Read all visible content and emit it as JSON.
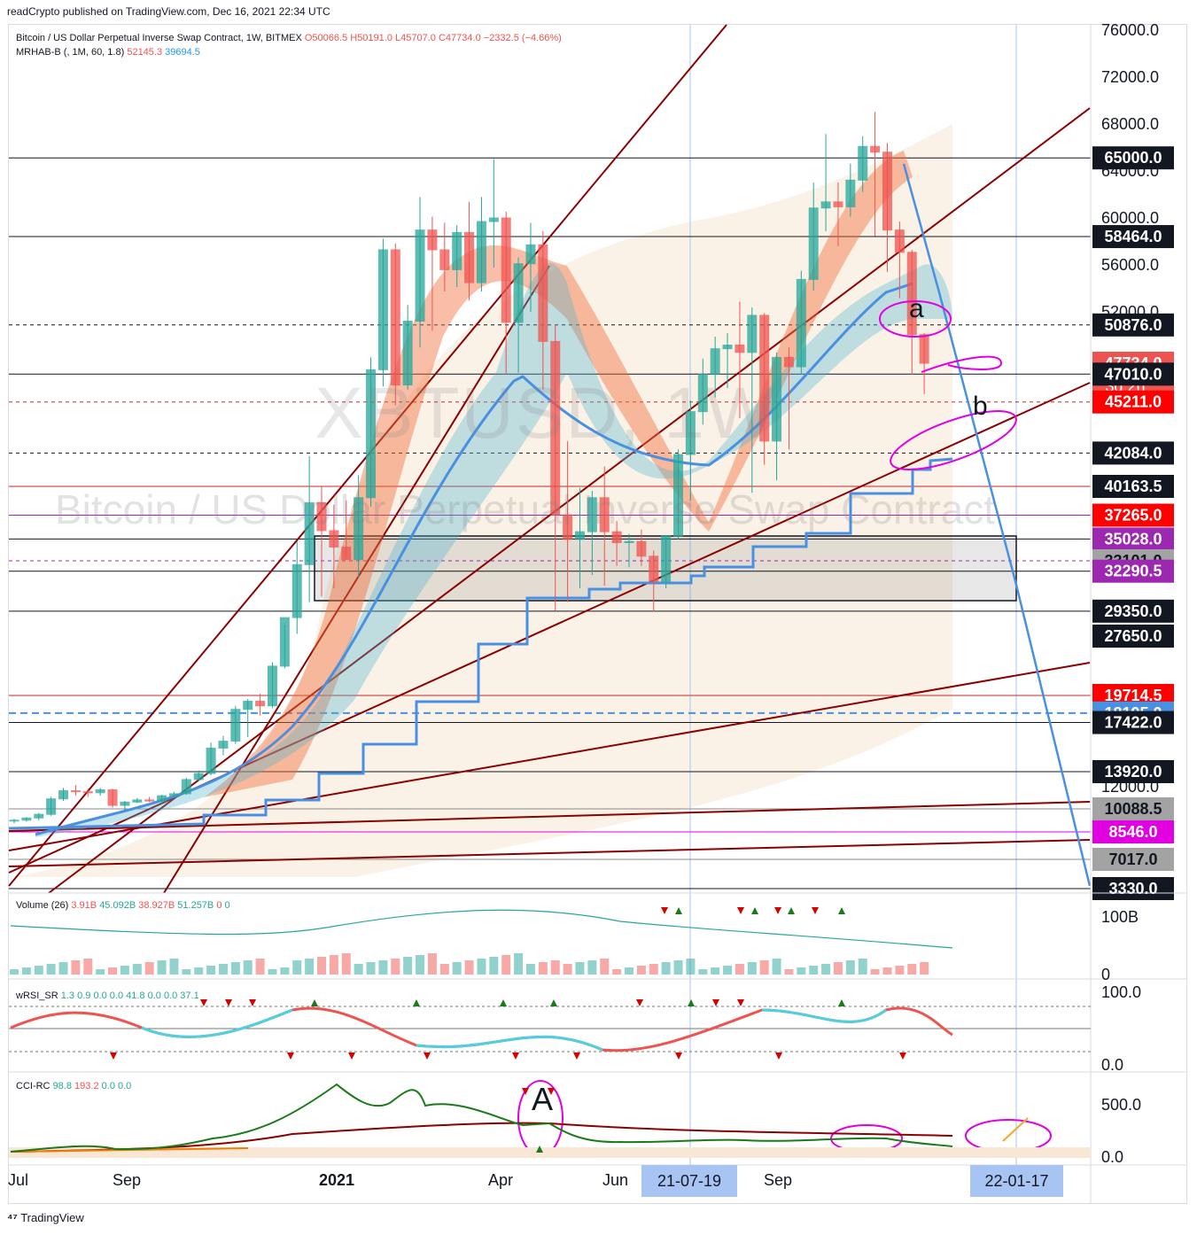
{
  "publish_line": "readCrypto published on TradingView.com, Dec 16, 2021 22:34 UTC",
  "footer": "TradingView",
  "watermark": {
    "symbol": "XBTUSD, 1W",
    "description": "Bitcoin / US Dollar Perpetual Inverse Swap Contract"
  },
  "legend": {
    "title": "Bitcoin / US Dollar Perpetual Inverse Swap Contract, 1W, BITMEX",
    "open": "O50066.5",
    "high": "H50191.0",
    "low": "L45707.0",
    "close": "C47734.0",
    "change": "−2332.5 (−4.66%)",
    "indicator": "MRHAB-B (, 1M, 60, 1.8)",
    "ind_v1": "52145.3",
    "ind_v2": "39694.5"
  },
  "colors": {
    "up": "#26a69a",
    "down": "#ef5350",
    "blue": "#4a90e2",
    "maroon": "#8b0000",
    "magenta": "#e000e0",
    "purple": "#9c27b0"
  },
  "price_axis": {
    "ticks": [
      "76000.0",
      "72000.0",
      "68000.0",
      "64000.0",
      "60000.0",
      "56000.0",
      "52000.0",
      "12000.0"
    ],
    "min_price": 3330,
    "max_price": 76000
  },
  "price_labels": [
    {
      "text": "65000.0",
      "value": 65000,
      "bg": "#131722",
      "fg": "#ffffff",
      "line": "solid"
    },
    {
      "text": "58464.0",
      "value": 58464,
      "bg": "#131722",
      "fg": "#ffffff",
      "line": "solid"
    },
    {
      "text": "50876.0",
      "value": 50876,
      "bg": "#131722",
      "fg": "#ffffff",
      "line": "dashed"
    },
    {
      "text": "47734.0",
      "value": 47734,
      "bg": "#ef5350",
      "fg": "#ffffff",
      "line": "none",
      "sub": "3d 2h"
    },
    {
      "text": "47010.0",
      "value": 47010,
      "bg": "#131722",
      "fg": "#ffffff",
      "line": "solid"
    },
    {
      "text": "45211.0",
      "value": 45211,
      "bg": "#ff0000",
      "fg": "#ffffff",
      "line": "dashed-red"
    },
    {
      "text": "42084.0",
      "value": 42084,
      "bg": "#131722",
      "fg": "#ffffff",
      "line": "dashed"
    },
    {
      "text": "40163.5",
      "value": 40163.5,
      "bg": "#131722",
      "fg": "#ffffff",
      "line": "solid-red"
    },
    {
      "text": "37265.0",
      "value": 37265,
      "bg": "#ff0000",
      "fg": "#ffffff",
      "line": "solid-purple"
    },
    {
      "text": "35028.0",
      "value": 35028,
      "bg": "#9c27b0",
      "fg": "#ffffff",
      "line": "solid"
    },
    {
      "text": "33101.0",
      "value": 33101,
      "bg": "#a3a3a3",
      "fg": "#131722",
      "line": "dashed-purple"
    },
    {
      "text": "32290.5",
      "value": 32290.5,
      "bg": "#9c27b0",
      "fg": "#ffffff",
      "line": "solid"
    },
    {
      "text": "29350.0",
      "value": 29350,
      "bg": "#131722",
      "fg": "#ffffff",
      "line": "solid"
    },
    {
      "text": "27650.0",
      "value": 27650,
      "bg": "#131722",
      "fg": "#ffffff",
      "line": "none"
    },
    {
      "text": "19714.5",
      "value": 19714.5,
      "bg": "#ff0000",
      "fg": "#ffffff",
      "line": "solid-red"
    },
    {
      "text": "18195.0",
      "value": 18195,
      "bg": "#4a90e2",
      "fg": "#ffffff",
      "line": "dashed-blue"
    },
    {
      "text": "17422.0",
      "value": 17422,
      "bg": "#131722",
      "fg": "#ffffff",
      "line": "solid"
    },
    {
      "text": "13920.0",
      "value": 13920,
      "bg": "#131722",
      "fg": "#ffffff",
      "line": "solid"
    },
    {
      "text": "10088.5",
      "value": 10088.5,
      "bg": "#a3a3a3",
      "fg": "#131722",
      "line": "solid-gray"
    },
    {
      "text": "8546.0",
      "value": 8546,
      "bg": "#e000e0",
      "fg": "#ffffff",
      "line": "solid-magenta"
    },
    {
      "text": "7017.0",
      "value": 7017,
      "bg": "#a3a3a3",
      "fg": "#131722",
      "line": "solid-gray"
    },
    {
      "text": "3330.0",
      "value": 3330,
      "bg": "#131722",
      "fg": "#ffffff",
      "line": "solid"
    }
  ],
  "volume_panel": {
    "legend": "Volume (26)",
    "v1": "3.91B",
    "v2": "45.092B",
    "v3": "38.927B",
    "v4": "51.257B",
    "v5": "0",
    "v6": "0",
    "axis": [
      "100B",
      "0"
    ]
  },
  "wrsi_panel": {
    "legend": "wRSI_SR",
    "vals": "1.3  0.9  0.0  0.0  41.8  0.0  0.0  37.1",
    "axis": [
      "100.0",
      "0.0"
    ]
  },
  "cci_panel": {
    "legend": "CCI-RC",
    "v1": "98.8",
    "v2": "193.2",
    "v3": "0.0",
    "v4": "0.0",
    "axis": [
      "500.0",
      "0.0"
    ]
  },
  "time_axis": {
    "labels": [
      "Jul",
      "Sep",
      "2021",
      "Apr",
      "Jun",
      "Sep"
    ],
    "highlight": [
      "21-07-19",
      "22-01-17"
    ]
  },
  "annotations": {
    "a": "a",
    "b": "b",
    "A": "A"
  },
  "chart_data": {
    "type": "candlestick",
    "timeframe": "1W",
    "symbol": "XBTUSD",
    "exchange": "BITMEX",
    "ylim": [
      3330,
      76000
    ],
    "candles": [
      [
        9250,
        9400,
        9100,
        9300
      ],
      [
        9300,
        9500,
        9200,
        9450
      ],
      [
        9450,
        9800,
        9300,
        9700
      ],
      [
        9700,
        11200,
        9600,
        11000
      ],
      [
        11000,
        12100,
        10800,
        11800
      ],
      [
        11800,
        12400,
        11300,
        11700
      ],
      [
        11700,
        12000,
        11200,
        11600
      ],
      [
        11600,
        12100,
        11300,
        11900
      ],
      [
        11900,
        12000,
        10200,
        10400
      ],
      [
        10400,
        10800,
        10000,
        10700
      ],
      [
        10700,
        11100,
        10600,
        10900
      ],
      [
        10900,
        11200,
        10700,
        10800
      ],
      [
        10800,
        11400,
        10600,
        11300
      ],
      [
        11300,
        11700,
        11100,
        11500
      ],
      [
        11500,
        13200,
        11400,
        13000
      ],
      [
        13000,
        14000,
        12800,
        13700
      ],
      [
        13700,
        15900,
        13500,
        15500
      ],
      [
        15500,
        16400,
        15000,
        16000
      ],
      [
        16000,
        18800,
        15800,
        18500
      ],
      [
        18500,
        19400,
        16300,
        19200
      ],
      [
        19200,
        19900,
        18000,
        18800
      ],
      [
        18800,
        23800,
        18600,
        23300
      ],
      [
        23300,
        28400,
        23000,
        28900
      ],
      [
        28900,
        34800,
        27800,
        32800
      ],
      [
        32800,
        41900,
        30000,
        38500
      ],
      [
        38500,
        40100,
        30400,
        35800
      ],
      [
        35800,
        38300,
        31000,
        34300
      ],
      [
        34300,
        38700,
        33500,
        33200
      ],
      [
        33200,
        40800,
        31800,
        39000
      ],
      [
        39000,
        48200,
        38100,
        47300
      ],
      [
        47300,
        58300,
        46200,
        57400
      ],
      [
        57400,
        57900,
        45000,
        46300
      ],
      [
        46300,
        52600,
        46000,
        51200
      ],
      [
        51200,
        61700,
        49000,
        59000
      ],
      [
        59000,
        60100,
        50400,
        57400
      ],
      [
        57400,
        59600,
        53800,
        55800
      ],
      [
        55800,
        59400,
        54200,
        58800
      ],
      [
        58800,
        61300,
        53000,
        54600
      ],
      [
        54600,
        61700,
        53800,
        59700
      ],
      [
        59700,
        64900,
        56000,
        60000
      ],
      [
        60000,
        60500,
        47000,
        51100
      ],
      [
        51100,
        56800,
        47100,
        56300
      ],
      [
        56300,
        59600,
        52000,
        57800
      ],
      [
        57800,
        58900,
        46000,
        49500
      ],
      [
        49500,
        50900,
        29400,
        37300
      ],
      [
        37300,
        42800,
        30000,
        35000
      ],
      [
        35000,
        40000,
        31000,
        35700
      ],
      [
        35700,
        39700,
        32000,
        39000
      ],
      [
        39000,
        41300,
        31200,
        35700
      ],
      [
        35700,
        36700,
        32700,
        34700
      ],
      [
        34700,
        35500,
        32600,
        34800
      ],
      [
        34800,
        35900,
        32700,
        33500
      ],
      [
        33500,
        34000,
        29300,
        31500
      ],
      [
        31500,
        35400,
        31000,
        35300
      ],
      [
        35300,
        42300,
        35000,
        42000
      ],
      [
        42000,
        45300,
        38700,
        44600
      ],
      [
        44600,
        48100,
        43800,
        47000
      ],
      [
        47000,
        49900,
        45500,
        48900
      ],
      [
        48900,
        50200,
        46100,
        49200
      ],
      [
        49200,
        52900,
        44200,
        48600
      ],
      [
        48600,
        52400,
        39500,
        51700
      ],
      [
        51700,
        51900,
        41400,
        42800
      ],
      [
        42800,
        48600,
        40500,
        48200
      ],
      [
        48200,
        49000,
        42300,
        47500
      ],
      [
        47500,
        55700,
        47000,
        54900
      ],
      [
        54900,
        62900,
        53900,
        60800
      ],
      [
        60800,
        67100,
        58900,
        61300
      ],
      [
        61300,
        62900,
        57700,
        60900
      ],
      [
        60900,
        64500,
        60100,
        63100
      ],
      [
        63100,
        66900,
        62100,
        66000
      ],
      [
        66000,
        69000,
        58500,
        65500
      ],
      [
        65500,
        66300,
        55600,
        59000
      ],
      [
        59000,
        59700,
        53200,
        57200
      ],
      [
        57200,
        57400,
        47000,
        50066
      ],
      [
        50066,
        50191,
        45707,
        47734
      ]
    ],
    "horizontal_levels": [
      65000,
      58464,
      50876,
      47010,
      45211,
      42084,
      40163.5,
      37265,
      35028,
      33101,
      32290.5,
      29350,
      27650,
      19714.5,
      18195,
      17422,
      13920,
      10088.5,
      8546,
      7017,
      3330
    ]
  }
}
